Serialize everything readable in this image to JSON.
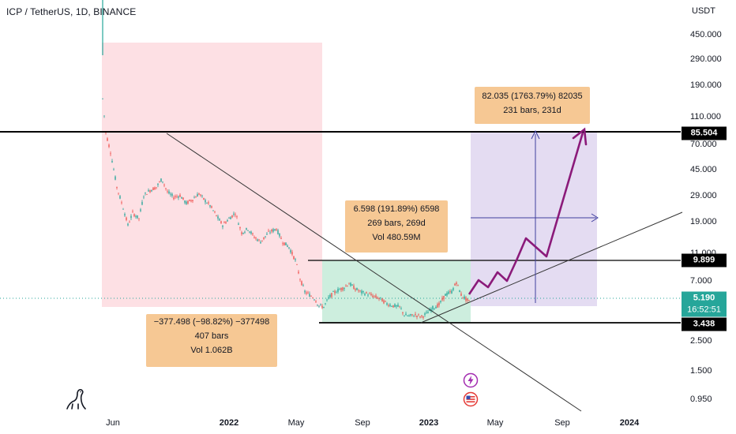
{
  "header": {
    "title": "ICP / TetherUS, 1D, BINANCE",
    "currency": "USDT"
  },
  "chart_data": {
    "type": "candlestick",
    "yaxis": {
      "scale": "log",
      "ticks": [
        "450.000",
        "290.000",
        "190.000",
        "110.000",
        "70.000",
        "45.000",
        "29.000",
        "19.000",
        "11.000",
        "7.000",
        "2.500",
        "1.500",
        "0.950"
      ]
    },
    "xaxis": {
      "ticks": [
        {
          "label": "Jun",
          "bold": false
        },
        {
          "label": "2022",
          "bold": true
        },
        {
          "label": "May",
          "bold": false
        },
        {
          "label": "Sep",
          "bold": false
        },
        {
          "label": "2023",
          "bold": true
        },
        {
          "label": "May",
          "bold": false
        },
        {
          "label": "Sep",
          "bold": false
        },
        {
          "label": "2024",
          "bold": true
        }
      ]
    },
    "horizontal_levels": [
      "85.504",
      "9.899",
      "3.438"
    ],
    "current_price": "5.190",
    "countdown": "16:52:51",
    "measurements": [
      {
        "lines": [
          "−377.498 (−98.82%) −377498",
          "407 bars",
          "Vol 1.062B"
        ],
        "color": "#f6c894"
      },
      {
        "lines": [
          "6.598 (191.89%) 6598",
          "269 bars, 269d",
          "Vol 480.59M"
        ],
        "color": "#f6c894"
      },
      {
        "lines": [
          "82.035 (1763.79%) 82035",
          "231 bars, 231d"
        ],
        "color": "#f6c894"
      }
    ],
    "colors": {
      "up": "#26a69a",
      "down": "#ef5350",
      "projection": "#8b1a7a",
      "drop_zone": "#fde0e4",
      "base_zone": "#cdeede",
      "target_zone": "#e4dcf2"
    }
  }
}
